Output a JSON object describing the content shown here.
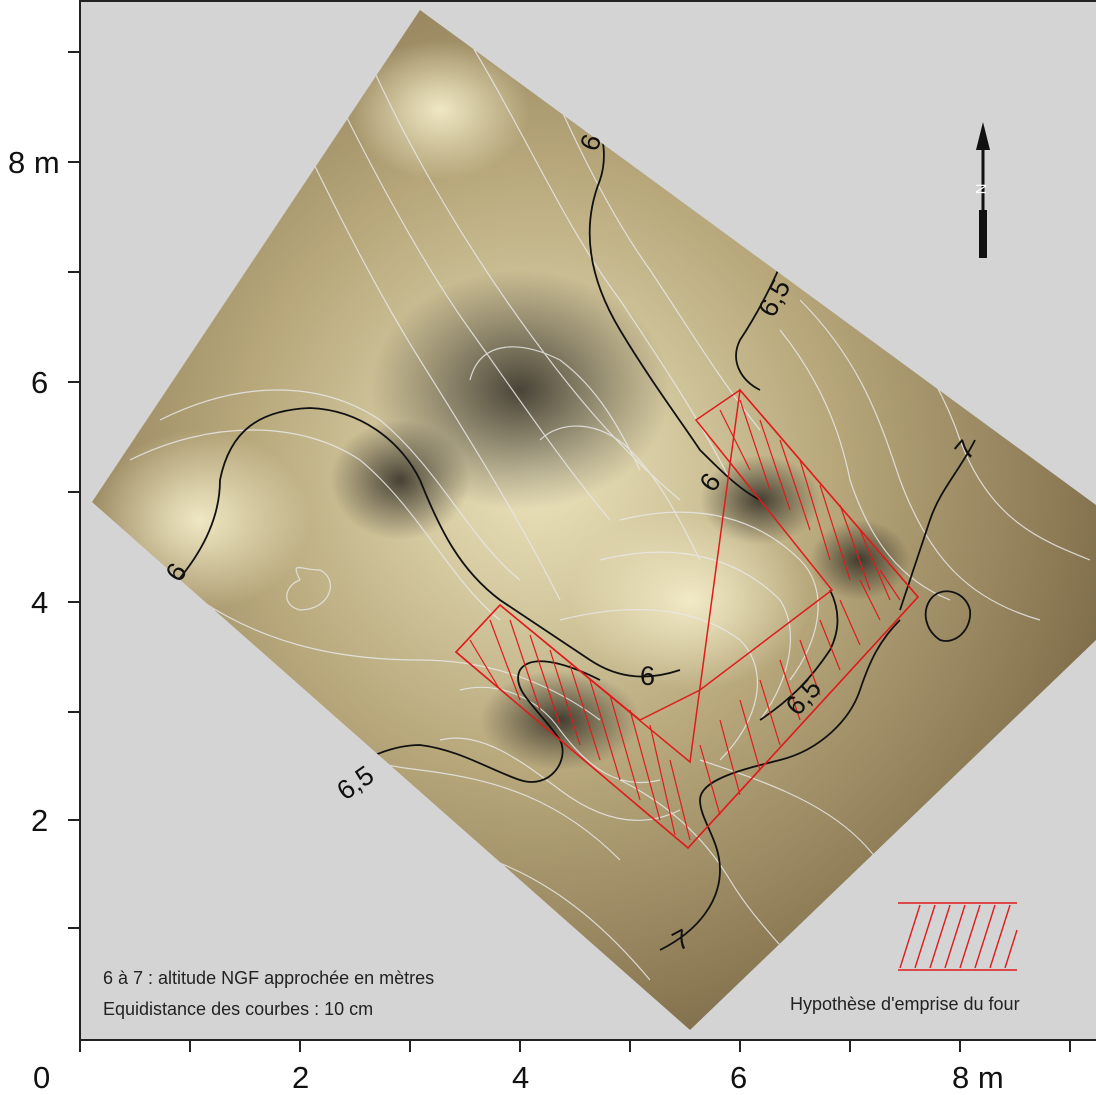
{
  "axes": {
    "x_ticks": [
      "0",
      "2",
      "4",
      "6",
      "8 m"
    ],
    "y_ticks": [
      "2",
      "4",
      "6",
      "8 m"
    ]
  },
  "contours": {
    "labels": [
      "6",
      "6,5",
      "6",
      "7",
      "6",
      "6",
      "6,5",
      "6,5",
      "7"
    ]
  },
  "notes": {
    "line1": "6 à 7 : altitude NGF approchée en mètres",
    "line2": "Equidistance des courbes : 10 cm"
  },
  "legend": {
    "label": "Hypothèse d'emprise du four"
  },
  "north": {
    "letter": "N"
  },
  "colors": {
    "background": "#d4d4d4",
    "terrain_light": "#e6dfb6",
    "terrain_dark": "#3a342a",
    "kiln_hatch": "#e01b1b",
    "contour_major": "#111111",
    "contour_minor": "#e8e8e8"
  }
}
